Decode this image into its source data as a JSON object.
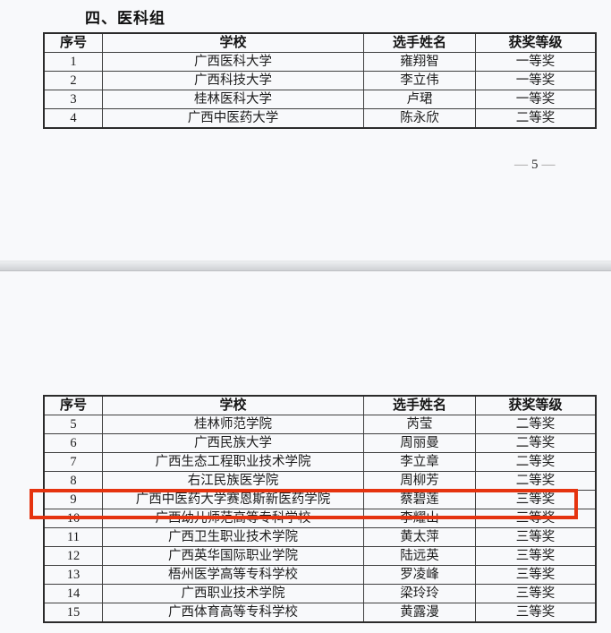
{
  "title": "四、医科组",
  "footer": {
    "left_dash": "—",
    "page_number": "5",
    "right_dash": "—"
  },
  "columns": {
    "no": "序号",
    "school": "学校",
    "name": "选手姓名",
    "award": "获奖等级"
  },
  "table1": {
    "rows": [
      {
        "no": "1",
        "school": "广西医科大学",
        "name": "雍翔智",
        "award": "一等奖"
      },
      {
        "no": "2",
        "school": "广西科技大学",
        "name": "李立伟",
        "award": "一等奖"
      },
      {
        "no": "3",
        "school": "桂林医科大学",
        "name": "卢珺",
        "award": "一等奖"
      },
      {
        "no": "4",
        "school": "广西中医药大学",
        "name": "陈永欣",
        "award": "二等奖"
      }
    ]
  },
  "table2": {
    "rows": [
      {
        "no": "5",
        "school": "桂林师范学院",
        "name": "芮莹",
        "award": "二等奖"
      },
      {
        "no": "6",
        "school": "广西民族大学",
        "name": "周丽曼",
        "award": "二等奖"
      },
      {
        "no": "7",
        "school": "广西生态工程职业技术学院",
        "name": "李立章",
        "award": "二等奖"
      },
      {
        "no": "8",
        "school": "右江民族医学院",
        "name": "周柳芳",
        "award": "二等奖"
      },
      {
        "no": "9",
        "school": "广西中医药大学赛恩斯新医药学院",
        "name": "蔡碧莲",
        "award": "三等奖"
      },
      {
        "no": "10",
        "school": "广西幼儿师范高等专科学校",
        "name": "李耀山",
        "award": "三等奖"
      },
      {
        "no": "11",
        "school": "广西卫生职业技术学院",
        "name": "黄太萍",
        "award": "三等奖"
      },
      {
        "no": "12",
        "school": "广西英华国际职业学院",
        "name": "陆远英",
        "award": "三等奖"
      },
      {
        "no": "13",
        "school": "梧州医学高等专科学校",
        "name": "罗凌峰",
        "award": "三等奖"
      },
      {
        "no": "14",
        "school": "广西职业技术学院",
        "name": "梁玲玲",
        "award": "三等奖"
      },
      {
        "no": "15",
        "school": "广西体育高等专科学校",
        "name": "黄露漫",
        "award": "三等奖"
      }
    ]
  },
  "highlight": {
    "highlighted_row_no": "9",
    "color": "#e5330f"
  }
}
